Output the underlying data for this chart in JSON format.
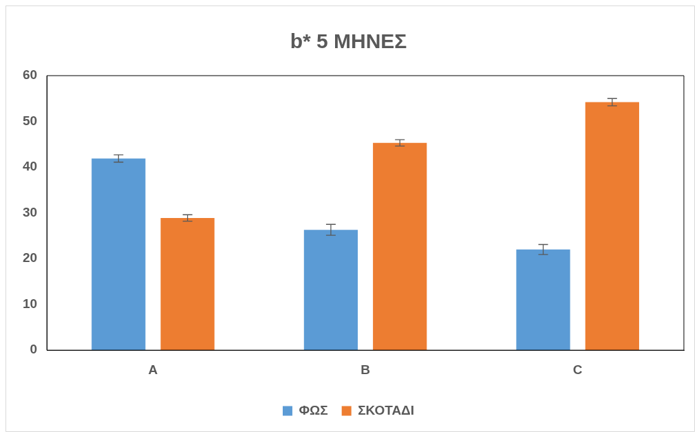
{
  "chart_data": {
    "type": "bar",
    "title": "b* 5 ΜΗΝΕΣ",
    "categories": [
      "A",
      "B",
      "C"
    ],
    "series": [
      {
        "name": "ΦΩΣ",
        "color": "#5b9bd5",
        "values": [
          41.9,
          26.3,
          22.0
        ],
        "errors": [
          0.8,
          1.2,
          1.1
        ]
      },
      {
        "name": "ΣΚΟΤΑΔΙ",
        "color": "#ed7d31",
        "values": [
          28.9,
          45.3,
          54.2
        ],
        "errors": [
          0.7,
          0.7,
          0.8
        ]
      }
    ],
    "ylim": [
      0,
      60
    ],
    "yticks": [
      0,
      10,
      20,
      30,
      40,
      50,
      60
    ],
    "grid": false,
    "legend": "bottom"
  }
}
